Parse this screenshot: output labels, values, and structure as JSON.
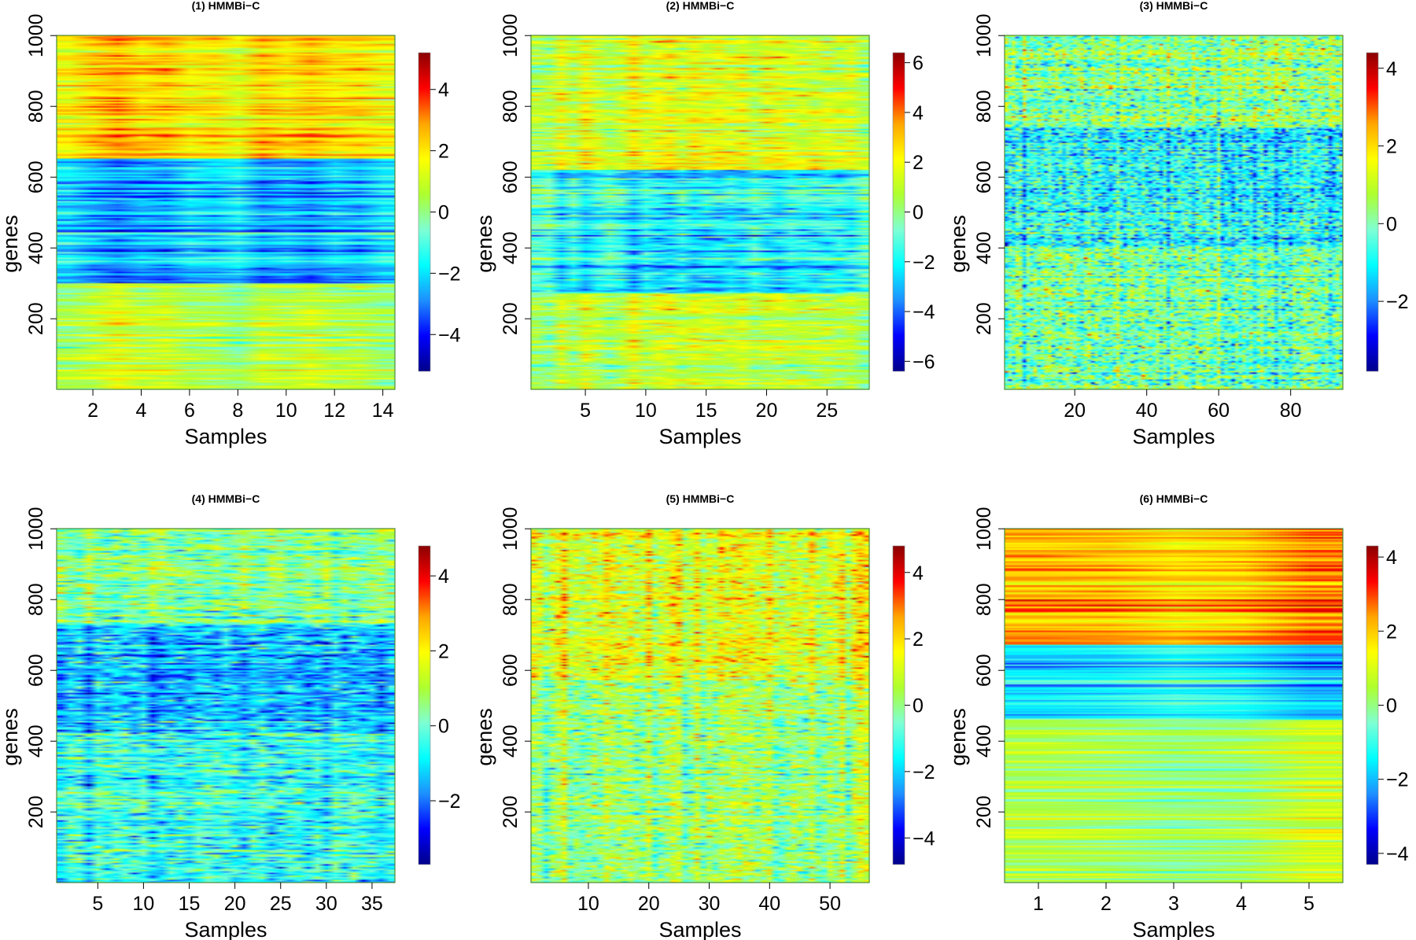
{
  "figure": {
    "caption_hidden": ""
  },
  "colormap": [
    "#00008B",
    "#0000FF",
    "#1E90FF",
    "#00FFFF",
    "#7FFFD4",
    "#ADFF2F",
    "#FFFF00",
    "#FFA500",
    "#FF0000",
    "#8B0000"
  ],
  "chart_data": [
    {
      "type": "heatmap",
      "title": "(1) HMMBi−C",
      "xlabel": "Samples",
      "ylabel": "genes",
      "n_samples": 14,
      "n_genes": 1000,
      "xticks": [
        2,
        4,
        6,
        8,
        10,
        12,
        14
      ],
      "yticks": [
        200,
        400,
        600,
        800,
        1000
      ],
      "colorbar": {
        "min": -5.2,
        "max": 5.2,
        "ticks": [
          -4,
          -2,
          0,
          2,
          4
        ]
      },
      "blocks": [
        {
          "from": 1,
          "to": 300,
          "mean": 0.6,
          "sd": 0.6
        },
        {
          "from": 301,
          "to": 650,
          "mean": -2.2,
          "sd": 0.8
        },
        {
          "from": 651,
          "to": 1000,
          "mean": 2.0,
          "sd": 0.6
        }
      ],
      "noise": 0.4,
      "col_sd": 0.4
    },
    {
      "type": "heatmap",
      "title": "(2) HMMBi−C",
      "xlabel": "Samples",
      "ylabel": "genes",
      "n_samples": 28,
      "n_genes": 1000,
      "xticks": [
        5,
        10,
        15,
        20,
        25
      ],
      "yticks": [
        200,
        400,
        600,
        800,
        1000
      ],
      "colorbar": {
        "min": -6.4,
        "max": 6.4,
        "ticks": [
          -6,
          -4,
          -2,
          0,
          2,
          4,
          6
        ]
      },
      "blocks": [
        {
          "from": 1,
          "to": 270,
          "mean": 0.8,
          "sd": 0.6
        },
        {
          "from": 271,
          "to": 620,
          "mean": -1.8,
          "sd": 0.9
        },
        {
          "from": 621,
          "to": 1000,
          "mean": 1.5,
          "sd": 0.8
        }
      ],
      "noise": 0.7,
      "col_sd": 0.5
    },
    {
      "type": "heatmap",
      "title": "(3) HMMBi−C",
      "xlabel": "Samples",
      "ylabel": "genes",
      "n_samples": 94,
      "n_genes": 1000,
      "xticks": [
        20,
        40,
        60,
        80
      ],
      "yticks": [
        200,
        400,
        600,
        800,
        1000
      ],
      "colorbar": {
        "min": -3.8,
        "max": 4.4,
        "ticks": [
          -2,
          0,
          2,
          4
        ]
      },
      "blocks": [
        {
          "from": 1,
          "to": 400,
          "mean": -0.1,
          "sd": 0.4
        },
        {
          "from": 401,
          "to": 740,
          "mean": -0.9,
          "sd": 0.4
        },
        {
          "from": 741,
          "to": 1000,
          "mean": 0.2,
          "sd": 0.4
        }
      ],
      "noise": 0.8,
      "col_sd": 0.3
    },
    {
      "type": "heatmap",
      "title": "(4) HMMBi−C",
      "xlabel": "Samples",
      "ylabel": "genes",
      "n_samples": 37,
      "n_genes": 1000,
      "xticks": [
        5,
        10,
        15,
        20,
        25,
        30,
        35
      ],
      "yticks": [
        200,
        400,
        600,
        800,
        1000
      ],
      "colorbar": {
        "min": -3.7,
        "max": 4.8,
        "ticks": [
          -2,
          0,
          2,
          4
        ]
      },
      "blocks": [
        {
          "from": 1,
          "to": 420,
          "mean": -0.4,
          "sd": 0.4
        },
        {
          "from": 421,
          "to": 730,
          "mean": -1.3,
          "sd": 0.4
        },
        {
          "from": 731,
          "to": 1000,
          "mean": 0.3,
          "sd": 0.4
        }
      ],
      "noise": 0.7,
      "col_sd": 0.3
    },
    {
      "type": "heatmap",
      "title": "(5) HMMBi−C",
      "xlabel": "Samples",
      "ylabel": "genes",
      "n_samples": 56,
      "n_genes": 1000,
      "xticks": [
        10,
        20,
        30,
        40,
        50
      ],
      "yticks": [
        200,
        400,
        600,
        800,
        1000
      ],
      "colorbar": {
        "min": -4.8,
        "max": 4.8,
        "ticks": [
          -4,
          -2,
          0,
          2,
          4
        ]
      },
      "blocks": [
        {
          "from": 1,
          "to": 570,
          "mean": 0.1,
          "sd": 0.3
        },
        {
          "from": 571,
          "to": 1000,
          "mean": 1.2,
          "sd": 0.4
        }
      ],
      "noise": 0.8,
      "col_sd": 0.4
    },
    {
      "type": "heatmap",
      "title": "(6) HMMBi−C",
      "xlabel": "Samples",
      "ylabel": "genes",
      "n_samples": 5,
      "n_genes": 1000,
      "xticks": [
        1,
        2,
        3,
        4,
        5
      ],
      "yticks": [
        200,
        400,
        600,
        800,
        1000
      ],
      "colorbar": {
        "min": -4.3,
        "max": 4.3,
        "ticks": [
          -4,
          -2,
          0,
          2,
          4
        ]
      },
      "blocks": [
        {
          "from": 1,
          "to": 460,
          "mean": 0.3,
          "sd": 0.5
        },
        {
          "from": 461,
          "to": 670,
          "mean": -1.5,
          "sd": 0.6
        },
        {
          "from": 671,
          "to": 1000,
          "mean": 2.2,
          "sd": 0.5
        }
      ],
      "noise": 0.2,
      "col_sd": 0.5
    }
  ]
}
